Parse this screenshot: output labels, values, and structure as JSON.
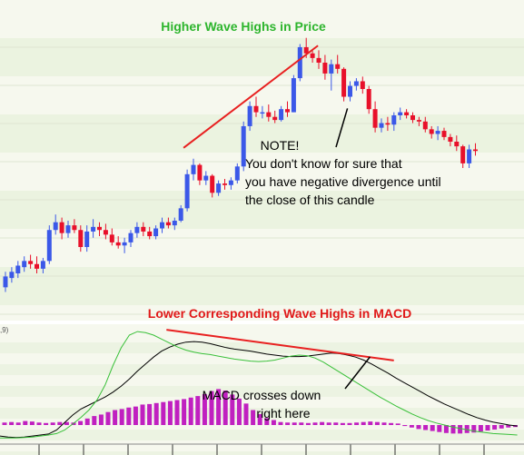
{
  "chart_data": [
    {
      "type": "candlestick",
      "title": "Higher Wave Highs in Price",
      "colors": {
        "up": "#3b58e8",
        "down": "#e8102a",
        "trendline": "#e82020"
      },
      "candles": [
        {
          "o": 2.3,
          "h": 3.3,
          "l": 2.0,
          "c": 3.0
        },
        {
          "o": 2.9,
          "h": 3.6,
          "l": 2.6,
          "c": 3.3
        },
        {
          "o": 3.2,
          "h": 4.0,
          "l": 2.9,
          "c": 3.7
        },
        {
          "o": 3.6,
          "h": 4.3,
          "l": 3.3,
          "c": 4.0
        },
        {
          "o": 4.0,
          "h": 4.4,
          "l": 3.5,
          "c": 3.8
        },
        {
          "o": 3.8,
          "h": 4.3,
          "l": 3.2,
          "c": 3.5
        },
        {
          "o": 3.5,
          "h": 4.2,
          "l": 3.2,
          "c": 4.0
        },
        {
          "o": 4.0,
          "h": 6.3,
          "l": 3.8,
          "c": 6.0
        },
        {
          "o": 6.0,
          "h": 7.0,
          "l": 5.7,
          "c": 6.5
        },
        {
          "o": 6.5,
          "h": 6.8,
          "l": 5.4,
          "c": 5.8
        },
        {
          "o": 5.8,
          "h": 6.6,
          "l": 5.5,
          "c": 6.3
        },
        {
          "o": 6.3,
          "h": 6.7,
          "l": 5.8,
          "c": 6.0
        },
        {
          "o": 6.0,
          "h": 6.3,
          "l": 4.6,
          "c": 4.9
        },
        {
          "o": 4.9,
          "h": 6.3,
          "l": 4.6,
          "c": 5.9
        },
        {
          "o": 5.9,
          "h": 6.7,
          "l": 5.5,
          "c": 6.2
        },
        {
          "o": 6.2,
          "h": 6.5,
          "l": 5.6,
          "c": 6.0
        },
        {
          "o": 6.0,
          "h": 6.4,
          "l": 5.4,
          "c": 5.7
        },
        {
          "o": 5.7,
          "h": 6.1,
          "l": 5.0,
          "c": 5.2
        },
        {
          "o": 5.2,
          "h": 5.6,
          "l": 4.8,
          "c": 5.0
        },
        {
          "o": 5.0,
          "h": 5.5,
          "l": 4.5,
          "c": 5.2
        },
        {
          "o": 5.2,
          "h": 6.0,
          "l": 4.9,
          "c": 5.8
        },
        {
          "o": 5.8,
          "h": 6.5,
          "l": 5.5,
          "c": 6.2
        },
        {
          "o": 6.2,
          "h": 6.5,
          "l": 5.6,
          "c": 5.9
        },
        {
          "o": 5.9,
          "h": 6.2,
          "l": 5.4,
          "c": 5.6
        },
        {
          "o": 5.6,
          "h": 6.3,
          "l": 5.4,
          "c": 6.1
        },
        {
          "o": 6.1,
          "h": 6.8,
          "l": 5.8,
          "c": 6.5
        },
        {
          "o": 6.5,
          "h": 6.8,
          "l": 6.1,
          "c": 6.3
        },
        {
          "o": 6.3,
          "h": 6.8,
          "l": 6.0,
          "c": 6.6
        },
        {
          "o": 6.6,
          "h": 7.6,
          "l": 6.5,
          "c": 7.4
        },
        {
          "o": 7.4,
          "h": 9.9,
          "l": 7.2,
          "c": 9.6
        },
        {
          "o": 9.6,
          "h": 10.6,
          "l": 9.2,
          "c": 10.2
        },
        {
          "o": 10.2,
          "h": 10.3,
          "l": 8.9,
          "c": 9.2
        },
        {
          "o": 9.2,
          "h": 9.8,
          "l": 8.9,
          "c": 9.5
        },
        {
          "o": 9.5,
          "h": 9.6,
          "l": 8.1,
          "c": 8.4
        },
        {
          "o": 8.4,
          "h": 9.2,
          "l": 8.2,
          "c": 9.0
        },
        {
          "o": 9.0,
          "h": 9.3,
          "l": 8.6,
          "c": 8.9
        },
        {
          "o": 8.9,
          "h": 9.4,
          "l": 8.6,
          "c": 9.2
        },
        {
          "o": 9.2,
          "h": 10.3,
          "l": 9.0,
          "c": 10.1
        },
        {
          "o": 10.1,
          "h": 13.0,
          "l": 9.8,
          "c": 12.7
        },
        {
          "o": 12.7,
          "h": 14.3,
          "l": 12.4,
          "c": 14.0
        },
        {
          "o": 14.0,
          "h": 14.6,
          "l": 13.3,
          "c": 13.6
        },
        {
          "o": 13.6,
          "h": 14.0,
          "l": 13.2,
          "c": 13.6
        },
        {
          "o": 13.6,
          "h": 14.1,
          "l": 13.0,
          "c": 13.3
        },
        {
          "o": 13.3,
          "h": 13.7,
          "l": 12.9,
          "c": 13.1
        },
        {
          "o": 13.1,
          "h": 14.0,
          "l": 13.0,
          "c": 13.8
        },
        {
          "o": 13.8,
          "h": 14.3,
          "l": 13.3,
          "c": 13.6
        },
        {
          "o": 13.6,
          "h": 16.0,
          "l": 13.6,
          "c": 15.8
        },
        {
          "o": 15.8,
          "h": 18.0,
          "l": 15.6,
          "c": 17.8
        },
        {
          "o": 17.8,
          "h": 18.4,
          "l": 17.1,
          "c": 17.4
        },
        {
          "o": 17.4,
          "h": 17.6,
          "l": 16.8,
          "c": 17.1
        },
        {
          "o": 17.1,
          "h": 17.6,
          "l": 16.4,
          "c": 16.8
        },
        {
          "o": 16.8,
          "h": 17.3,
          "l": 15.7,
          "c": 16.1
        },
        {
          "o": 16.1,
          "h": 17.0,
          "l": 15.0,
          "c": 16.7
        },
        {
          "o": 16.7,
          "h": 17.3,
          "l": 16.1,
          "c": 16.4
        },
        {
          "o": 16.4,
          "h": 16.5,
          "l": 14.3,
          "c": 14.6
        },
        {
          "o": 14.6,
          "h": 15.6,
          "l": 14.3,
          "c": 15.3
        },
        {
          "o": 15.3,
          "h": 15.8,
          "l": 15.0,
          "c": 15.6
        },
        {
          "o": 15.6,
          "h": 15.9,
          "l": 14.8,
          "c": 15.1
        },
        {
          "o": 15.1,
          "h": 15.3,
          "l": 13.5,
          "c": 13.8
        },
        {
          "o": 13.8,
          "h": 14.3,
          "l": 12.3,
          "c": 12.6
        },
        {
          "o": 12.6,
          "h": 13.2,
          "l": 12.3,
          "c": 12.9
        },
        {
          "o": 12.9,
          "h": 13.3,
          "l": 12.4,
          "c": 12.8
        },
        {
          "o": 12.8,
          "h": 13.6,
          "l": 12.4,
          "c": 13.4
        },
        {
          "o": 13.4,
          "h": 13.9,
          "l": 13.1,
          "c": 13.6
        },
        {
          "o": 13.6,
          "h": 13.8,
          "l": 13.2,
          "c": 13.4
        },
        {
          "o": 13.4,
          "h": 13.6,
          "l": 12.9,
          "c": 13.1
        },
        {
          "o": 13.1,
          "h": 13.3,
          "l": 12.7,
          "c": 13.0
        },
        {
          "o": 13.0,
          "h": 13.3,
          "l": 12.3,
          "c": 12.5
        },
        {
          "o": 12.5,
          "h": 12.7,
          "l": 11.9,
          "c": 12.2
        },
        {
          "o": 12.2,
          "h": 12.7,
          "l": 11.8,
          "c": 12.4
        },
        {
          "o": 12.4,
          "h": 12.6,
          "l": 11.8,
          "c": 12.0
        },
        {
          "o": 12.0,
          "h": 12.2,
          "l": 11.4,
          "c": 11.7
        },
        {
          "o": 11.7,
          "h": 12.1,
          "l": 11.1,
          "c": 11.4
        },
        {
          "o": 11.4,
          "h": 11.5,
          "l": 10.0,
          "c": 10.3
        },
        {
          "o": 10.3,
          "h": 11.5,
          "l": 10.0,
          "c": 11.2
        },
        {
          "o": 11.2,
          "h": 11.6,
          "l": 10.8,
          "c": 11.1
        }
      ],
      "trendlines": [
        {
          "from": {
            "i": 29,
            "v": 11.3
          },
          "to": {
            "i": 49,
            "v": 17.9
          }
        }
      ],
      "annotations": [
        {
          "text": "NOTE!",
          "arrow_to": {
            "i": 54,
            "v": 14.2
          }
        },
        {
          "text": "You don't know for sure that"
        },
        {
          "text": "you have negative divergence until"
        },
        {
          "text": "the close of this candle"
        }
      ]
    },
    {
      "type": "macd",
      "title": "Lower Corresponding Wave Highs in MACD",
      "axis_fragment": ",9)",
      "colors": {
        "histogram": "#c020c0",
        "macd": "#000000",
        "signal": "#39c039",
        "trendline": "#e82020"
      },
      "histogram": [
        0.05,
        0.06,
        0.05,
        0.08,
        0.07,
        0.05,
        0.04,
        0.05,
        0.06,
        0.06,
        0.05,
        0.08,
        0.13,
        0.18,
        0.21,
        0.26,
        0.3,
        0.32,
        0.35,
        0.37,
        0.41,
        0.42,
        0.44,
        0.46,
        0.48,
        0.5,
        0.52,
        0.55,
        0.58,
        0.62,
        0.68,
        0.72,
        0.69,
        0.61,
        0.53,
        0.43,
        0.3,
        0.22,
        0.14,
        0.1,
        0.06,
        0.05,
        0.05,
        0.05,
        0.04,
        0.05,
        0.06,
        0.05,
        0.05,
        0.04,
        0.04,
        0.05,
        0.06,
        0.07,
        0.06,
        0.05,
        0.04,
        0.03,
        -0.02,
        -0.05,
        -0.08,
        -0.1,
        -0.12,
        -0.14,
        -0.16,
        -0.17,
        -0.17,
        -0.16,
        -0.15,
        -0.13,
        -0.11,
        -0.09,
        -0.07,
        -0.05,
        -0.04
      ],
      "macd": [
        -0.22,
        -0.24,
        -0.25,
        -0.24,
        -0.22,
        -0.2,
        -0.18,
        -0.1,
        0.05,
        0.2,
        0.32,
        0.4,
        0.48,
        0.56,
        0.66,
        0.78,
        0.92,
        1.08,
        1.22,
        1.36,
        1.48,
        1.56,
        1.62,
        1.66,
        1.67,
        1.66,
        1.63,
        1.59,
        1.55,
        1.52,
        1.5,
        1.48,
        1.45,
        1.42,
        1.4,
        1.38,
        1.37,
        1.37,
        1.38,
        1.4,
        1.42,
        1.44,
        1.43,
        1.4,
        1.36,
        1.3,
        1.22,
        1.13,
        1.04,
        0.94,
        0.85,
        0.76,
        0.67,
        0.58,
        0.5,
        0.42,
        0.35,
        0.28,
        0.21,
        0.15,
        0.1,
        0.06,
        0.03,
        0.0,
        -0.02
      ],
      "signal": [
        -0.26,
        -0.26,
        -0.26,
        -0.25,
        -0.24,
        -0.22,
        -0.2,
        -0.17,
        -0.1,
        0.02,
        0.15,
        0.3,
        0.5,
        0.8,
        1.2,
        1.55,
        1.8,
        1.87,
        1.85,
        1.8,
        1.72,
        1.64,
        1.56,
        1.5,
        1.46,
        1.43,
        1.41,
        1.38,
        1.35,
        1.32,
        1.3,
        1.28,
        1.27,
        1.28,
        1.3,
        1.34,
        1.38,
        1.4,
        1.39,
        1.34,
        1.26,
        1.16,
        1.06,
        0.96,
        0.86,
        0.76,
        0.66,
        0.56,
        0.47,
        0.38,
        0.3,
        0.22,
        0.15,
        0.09,
        0.04,
        0.0,
        -0.04,
        -0.07,
        -0.1,
        -0.13,
        -0.15,
        -0.17,
        -0.18,
        -0.19,
        -0.2
      ],
      "trendline": {
        "from": {
          "i": 17,
          "v": 1.87
        },
        "to": {
          "i": 53,
          "v": 1.33
        }
      },
      "annotations": [
        {
          "text": "MACD crosses down",
          "arrow_to": {
            "i": 46,
            "v": 1.4
          }
        },
        {
          "text": "right here"
        }
      ]
    }
  ]
}
